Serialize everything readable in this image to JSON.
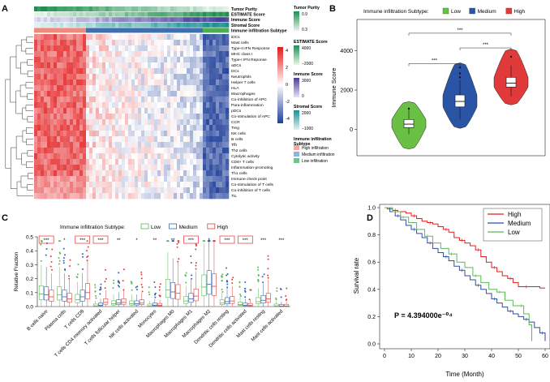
{
  "panel_labels": [
    "A",
    "B",
    "C",
    "D"
  ],
  "chart_data": [
    {
      "panel": "A",
      "type": "heatmap",
      "annotation_tracks": [
        {
          "name": "Tumor Purity",
          "palette": [
            "#1f8f4f",
            "#e8f5ec"
          ]
        },
        {
          "name": "ESTIMATE Score",
          "palette": [
            "#e8f5ec",
            "#1f8f4f"
          ]
        },
        {
          "name": "Immune Score",
          "palette": [
            "#e6e2f3",
            "#4c3f9a"
          ]
        },
        {
          "name": "Stromal Score",
          "palette": [
            "#e2f2f2",
            "#1f8f8f"
          ]
        },
        {
          "name": "Immune infiltration Subtype",
          "palette": [
            "#f08a7a",
            "#3d6fb4",
            "#4caf50"
          ]
        }
      ],
      "rows": [
        "iDCs",
        "Mast cells",
        "Type-II IFN Response",
        "MHC class I",
        "Type-I IFN Reponse",
        "aDCs",
        "DCs",
        "Neutrophils",
        "Helper T cells",
        "HLA",
        "Macrophages",
        "Co-inhibition of APC",
        "Para-inflammation",
        "pDCs",
        "Co-stimulation of APC",
        "CCR",
        "Treg",
        "NK cells",
        "B cells",
        "Tfh",
        "Th2 cells",
        "Cytolytic activity",
        "CD8+ T cells",
        "Inflammation-promoting",
        "Th1 cells",
        "Immune check point",
        "Co-stimulation of T cells",
        "Co-inhibition of T cells",
        "TIL"
      ],
      "value_colorbar": {
        "ticks": [
          4,
          2,
          0,
          -2,
          -4
        ],
        "colors": [
          "#e31a1c",
          "#ffffff",
          "#1f3f99"
        ]
      },
      "legends": [
        {
          "title": "Tumor Purity",
          "ticks": [
            "0.9",
            "0.3"
          ]
        },
        {
          "title": "ESTIMATE Score",
          "ticks": [
            "4000",
            "−2000"
          ]
        },
        {
          "title": "Immune Score",
          "ticks": [
            "3000",
            "0"
          ]
        },
        {
          "title": "Stromal Score",
          "ticks": [
            "2000",
            "−1000"
          ]
        },
        {
          "title": "Immune infiltration Subtype",
          "title_lines": [
            "Immune infiltration",
            "Subtype"
          ],
          "items": [
            "High infiltration",
            "Medium infiltration",
            "Low infiltration"
          ],
          "colors": [
            "#f4a7a0",
            "#8fb3de",
            "#6cc58a"
          ]
        }
      ]
    },
    {
      "panel": "B",
      "type": "violin",
      "legend_title": "Immune infiltration Subtype:",
      "series": [
        {
          "name": "Low",
          "color": "#6abf45",
          "q1": 80,
          "median": 260,
          "q3": 500,
          "wlo": -250,
          "whi": 1020,
          "min": -1000,
          "max": 1400,
          "outliers": [
            1050
          ]
        },
        {
          "name": "Medium",
          "color": "#2a55a6",
          "q1": 1140,
          "median": 1420,
          "q3": 1750,
          "wlo": 500,
          "whi": 2500,
          "min": 50,
          "max": 3380,
          "outliers": [
            2650,
            2850,
            3150
          ]
        },
        {
          "name": "High",
          "color": "#e03a3a",
          "q1": 2150,
          "median": 2350,
          "q3": 2650,
          "wlo": 1680,
          "whi": 3250,
          "min": 1250,
          "max": 4080,
          "outliers": [
            3700
          ]
        }
      ],
      "ylabel": "Immune Score",
      "yticks": [
        0,
        2000,
        4000
      ],
      "ylim": [
        -1350,
        5600
      ],
      "significance": [
        {
          "pair": [
            0,
            1
          ],
          "label": "***",
          "y": 3350
        },
        {
          "pair": [
            1,
            2
          ],
          "label": "***",
          "y": 4150
        },
        {
          "pair": [
            0,
            2
          ],
          "label": "***",
          "y": 4900
        }
      ]
    },
    {
      "panel": "C",
      "type": "boxplot",
      "legend_title": "Immune infiltration Subtype:",
      "series_names": [
        "Low",
        "Medium",
        "High"
      ],
      "series_colors": [
        "#5cb85c",
        "#3465b0",
        "#e0413c"
      ],
      "categories": [
        "B cells naive",
        "Plasma cells",
        "T cells CD8",
        "T cells CD4 memory activated",
        "T cells follicular helper",
        "NK cells activated",
        "Monocytes",
        "Macrophages M0",
        "Macrophages M1",
        "Macrophages M2",
        "Dendritic cells resting",
        "Dendritic cells activated",
        "Mast cells resting",
        "Mast cells activated"
      ],
      "significance": [
        "***",
        "*",
        "***",
        "***",
        "**",
        "*",
        "**",
        "**",
        "***",
        "*",
        "***",
        "***",
        "***",
        "***"
      ],
      "boxed_significance": [
        0,
        2,
        3,
        8,
        10,
        11
      ],
      "medians": [
        [
          0.09,
          0.085,
          0.07
        ],
        [
          0.085,
          0.07,
          0.055
        ],
        [
          0.05,
          0.07,
          0.1
        ],
        [
          0.005,
          0.01,
          0.03
        ],
        [
          0.02,
          0.025,
          0.03
        ],
        [
          0.02,
          0.02,
          0.025
        ],
        [
          0.005,
          0.01,
          0.008
        ],
        [
          0.12,
          0.105,
          0.095
        ],
        [
          0.04,
          0.055,
          0.075
        ],
        [
          0.14,
          0.16,
          0.145
        ],
        [
          0.025,
          0.035,
          0.04
        ],
        [
          0.015,
          0.01,
          0.008
        ],
        [
          0.035,
          0.045,
          0.055
        ],
        [
          0.005,
          0.003,
          0.004
        ]
      ],
      "ylabel": "Relative Fraction",
      "yticks": [
        0.0,
        0.1,
        0.2,
        0.3,
        0.4,
        0.5
      ],
      "ylim": [
        0,
        0.5
      ]
    },
    {
      "panel": "D",
      "type": "line",
      "title": "",
      "xlabel": "Time (Month)",
      "ylabel": "Survival rate",
      "xticks": [
        0,
        10,
        20,
        30,
        40,
        50,
        60
      ],
      "yticks": [
        0.0,
        0.2,
        0.4,
        0.6,
        0.8,
        1.0
      ],
      "xlim": [
        0,
        60
      ],
      "ylim": [
        0,
        1.0
      ],
      "annotation": "P = 4.394000e⁻⁰⁴",
      "series": [
        {
          "name": "High",
          "color": "#e41a1c",
          "x": [
            0,
            1,
            3,
            5,
            8,
            10,
            12,
            14,
            16,
            18,
            20,
            22,
            24,
            26,
            28,
            30,
            32,
            34,
            36,
            38,
            40,
            42,
            44,
            46,
            48,
            50,
            52,
            55,
            58,
            60
          ],
          "y": [
            1.0,
            0.99,
            0.98,
            0.97,
            0.96,
            0.94,
            0.92,
            0.9,
            0.89,
            0.88,
            0.86,
            0.84,
            0.82,
            0.78,
            0.76,
            0.74,
            0.72,
            0.69,
            0.64,
            0.6,
            0.56,
            0.53,
            0.5,
            0.48,
            0.45,
            0.42,
            0.42,
            0.42,
            0.41,
            0.41
          ]
        },
        {
          "name": "Medium",
          "color": "#2c4ea3",
          "x": [
            0,
            2,
            4,
            6,
            8,
            10,
            12,
            14,
            16,
            18,
            20,
            22,
            24,
            26,
            28,
            30,
            32,
            34,
            36,
            38,
            40,
            42,
            44,
            46,
            48,
            50,
            52,
            54,
            56,
            58,
            60
          ],
          "y": [
            1.0,
            0.97,
            0.94,
            0.91,
            0.87,
            0.84,
            0.81,
            0.78,
            0.74,
            0.7,
            0.67,
            0.64,
            0.61,
            0.57,
            0.54,
            0.5,
            0.47,
            0.43,
            0.4,
            0.37,
            0.33,
            0.3,
            0.27,
            0.24,
            0.22,
            0.2,
            0.18,
            0.16,
            0.12,
            0.08,
            0.02
          ]
        },
        {
          "name": "Low",
          "color": "#5cb85c",
          "x": [
            0,
            3,
            6,
            9,
            12,
            15,
            18,
            21,
            24,
            27,
            30,
            33,
            36,
            39,
            42,
            45,
            48,
            50,
            52,
            54,
            55
          ],
          "y": [
            1.0,
            0.97,
            0.93,
            0.89,
            0.84,
            0.79,
            0.74,
            0.7,
            0.66,
            0.6,
            0.56,
            0.5,
            0.45,
            0.4,
            0.38,
            0.32,
            0.28,
            0.28,
            0.22,
            0.14,
            0.02
          ]
        }
      ]
    }
  ]
}
